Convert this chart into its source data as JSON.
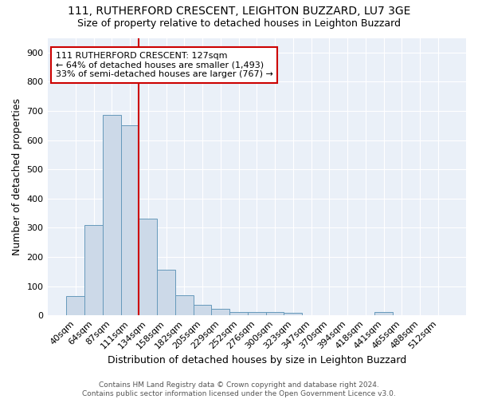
{
  "title1": "111, RUTHERFORD CRESCENT, LEIGHTON BUZZARD, LU7 3GE",
  "title2": "Size of property relative to detached houses in Leighton Buzzard",
  "xlabel": "Distribution of detached houses by size in Leighton Buzzard",
  "ylabel": "Number of detached properties",
  "categories": [
    "40sqm",
    "64sqm",
    "87sqm",
    "111sqm",
    "134sqm",
    "158sqm",
    "182sqm",
    "205sqm",
    "229sqm",
    "252sqm",
    "276sqm",
    "300sqm",
    "323sqm",
    "347sqm",
    "370sqm",
    "394sqm",
    "418sqm",
    "441sqm",
    "465sqm",
    "488sqm",
    "512sqm"
  ],
  "values": [
    65,
    310,
    685,
    650,
    330,
    155,
    68,
    35,
    22,
    12,
    12,
    12,
    8,
    0,
    0,
    0,
    0,
    12,
    0,
    0,
    0
  ],
  "bar_color": "#ccd9e8",
  "bar_edge_color": "#6699bb",
  "vline_color": "#cc0000",
  "vline_x": 4.0,
  "annotation_text": "111 RUTHERFORD CRESCENT: 127sqm\n← 64% of detached houses are smaller (1,493)\n33% of semi-detached houses are larger (767) →",
  "annotation_box_color": "#ffffff",
  "annotation_box_edge_color": "#cc0000",
  "ylim": [
    0,
    950
  ],
  "yticks": [
    0,
    100,
    200,
    300,
    400,
    500,
    600,
    700,
    800,
    900
  ],
  "background_color": "#eaf0f8",
  "grid_color": "#ffffff",
  "footer_text": "Contains HM Land Registry data © Crown copyright and database right 2024.\nContains public sector information licensed under the Open Government Licence v3.0.",
  "title1_fontsize": 10,
  "title2_fontsize": 9,
  "xlabel_fontsize": 9,
  "ylabel_fontsize": 9,
  "tick_fontsize": 8,
  "ann_fontsize": 8,
  "footer_fontsize": 6.5
}
